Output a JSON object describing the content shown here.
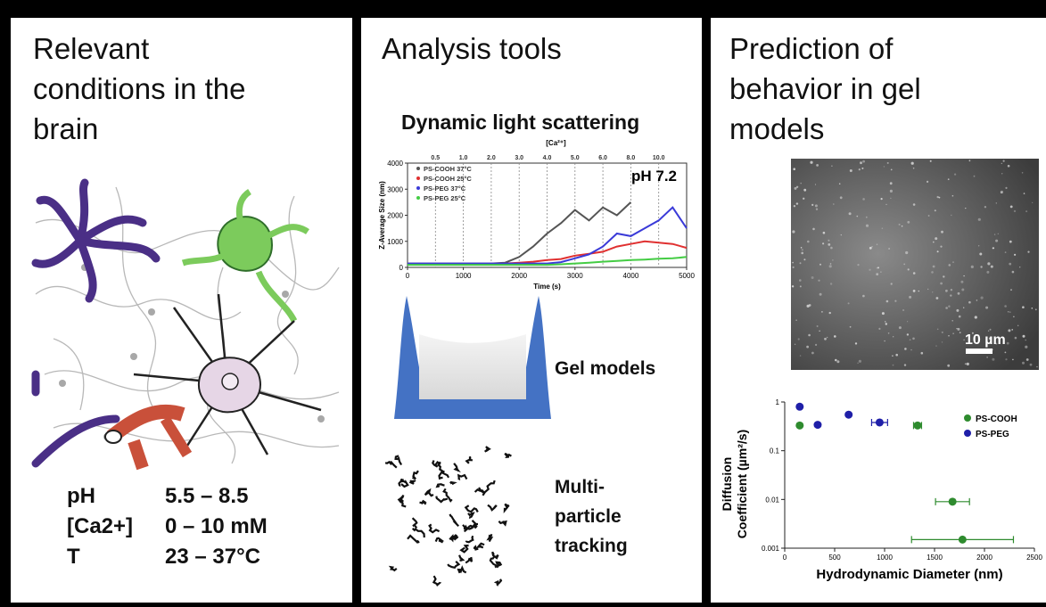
{
  "panels": [
    {
      "title_lines": [
        "Relevant",
        "conditions in the",
        "brain"
      ],
      "conditions": [
        [
          "pH",
          "5.5 – 8.5"
        ],
        [
          "[Ca2+]",
          "0 – 10 mM"
        ],
        [
          "T",
          "23 – 37°C"
        ]
      ]
    },
    {
      "title": "Analysis tools",
      "dls_title": "Dynamic light scattering",
      "dls_chart": {
        "type": "line",
        "annotation": "[Ca²⁺]",
        "ph_label": "pH 7.2",
        "x_label": "Time (s)",
        "y_label": "Z-Average Size (nm)",
        "x": [
          0,
          250,
          500,
          750,
          1000,
          1250,
          1500,
          1750,
          2000,
          2250,
          2500,
          2750,
          3000,
          3250,
          3500,
          3750,
          4000,
          4250,
          4500,
          4750,
          5000
        ],
        "series": [
          {
            "name": "PS-COOH 37°C",
            "color": "#555555",
            "values": [
              150,
              150,
              150,
              150,
              150,
              150,
              150,
              180,
              400,
              800,
              1300,
              1700,
              2200,
              1800,
              2300,
              2000,
              2500,
              null,
              null,
              null,
              null
            ]
          },
          {
            "name": "PS-COOH 25°C",
            "color": "#e03030",
            "values": [
              130,
              130,
              130,
              130,
              130,
              130,
              140,
              150,
              180,
              220,
              280,
              320,
              450,
              520,
              600,
              800,
              900,
              1000,
              950,
              900,
              750
            ]
          },
          {
            "name": "PS-PEG 37°C",
            "color": "#3a3ad8",
            "values": [
              150,
              150,
              150,
              150,
              150,
              150,
              150,
              150,
              150,
              150,
              150,
              200,
              350,
              500,
              800,
              1300,
              1200,
              1500,
              1800,
              2300,
              1500
            ]
          },
          {
            "name": "PS-PEG 25°C",
            "color": "#44cc44",
            "values": [
              100,
              100,
              100,
              100,
              100,
              100,
              100,
              100,
              100,
              100,
              100,
              120,
              150,
              180,
              220,
              250,
              280,
              300,
              330,
              350,
              400
            ]
          }
        ],
        "ca_additions": [
          {
            "time": 500,
            "label": "0.5"
          },
          {
            "time": 1000,
            "label": "1.0"
          },
          {
            "time": 1500,
            "label": "2.0"
          },
          {
            "time": 2000,
            "label": "3.0"
          },
          {
            "time": 2500,
            "label": "4.0"
          },
          {
            "time": 3000,
            "label": "5.0"
          },
          {
            "time": 3500,
            "label": "6.0"
          },
          {
            "time": 4000,
            "label": "8.0"
          },
          {
            "time": 4500,
            "label": "10.0"
          }
        ],
        "xlim": [
          0,
          5000
        ],
        "xticks": [
          0,
          1000,
          2000,
          3000,
          4000,
          5000
        ],
        "ylim": [
          0,
          4000
        ],
        "yticks": [
          0,
          1000,
          2000,
          3000,
          4000
        ]
      },
      "gel_label": "Gel models",
      "tracking_lines": [
        "Multi-",
        "particle",
        "tracking"
      ]
    },
    {
      "title_lines": [
        "Prediction of",
        "behavior in gel",
        "models"
      ],
      "scale_bar": "10 µm",
      "diffusion_chart": {
        "type": "scatter",
        "x_label": "Hydrodynamic Diameter (nm)",
        "y_label_lines": [
          "Diffusion",
          "Coefficient (µm²/s)"
        ],
        "ylog": true,
        "series": [
          {
            "name": "PS-COOH",
            "color": "#2e8b2e",
            "x": [
              150,
              1330,
              1680,
              1780
            ],
            "x_err": [
              0,
              40,
              170,
              510
            ],
            "values": [
              0.33,
              0.33,
              0.009,
              0.0015
            ]
          },
          {
            "name": "PS-PEG",
            "color": "#1f1fa8",
            "x": [
              150,
              330,
              640,
              950
            ],
            "x_err": [
              0,
              0,
              0,
              80
            ],
            "values": [
              0.8,
              0.34,
              0.55,
              0.38
            ]
          }
        ],
        "xlim": [
          0,
          2500
        ],
        "xticks": [
          0,
          500,
          1000,
          1500,
          2000,
          2500
        ],
        "ylim": [
          0.001,
          1
        ],
        "yticks": [
          0.001,
          0.01,
          0.1,
          1
        ]
      }
    }
  ]
}
